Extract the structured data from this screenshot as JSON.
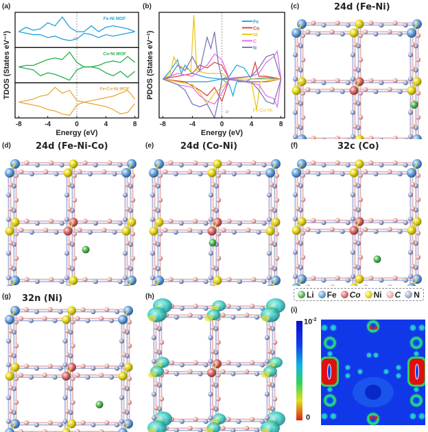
{
  "panel_labels": {
    "a": "(a)",
    "b": "(b)",
    "c": "(c)",
    "d": "(d)",
    "e": "(e)",
    "f": "(f)",
    "g": "(g)",
    "h": "(h)",
    "i": "(i)"
  },
  "titles": {
    "c": "24d (Fe-Ni)",
    "d": "24d (Fe-Ni-Co)",
    "e": "24d (Co-Ni)",
    "f": "32c (Co)",
    "g": "32n (Ni)"
  },
  "legend": [
    {
      "label": "Li",
      "color": "#5cb85c"
    },
    {
      "label": "Fe",
      "color": "#6fa8dc"
    },
    {
      "label": "Co",
      "color": "#d97070"
    },
    {
      "label": "Ni",
      "color": "#e6d81c"
    },
    {
      "label": "C",
      "color": "#e8b4b4"
    },
    {
      "label": "N",
      "color": "#9aa4c8"
    }
  ],
  "colorbar": {
    "max_base": "10",
    "max_exp": "-2",
    "min_label": "0"
  },
  "chart_data": [
    {
      "type": "line",
      "title": "",
      "xlabel": "Energy (eV)",
      "ylabel": "TDOS (States eV⁻¹)",
      "xlim": [
        -8.5,
        8.5
      ],
      "xticks": [
        -8,
        -4,
        0,
        4,
        8
      ],
      "fermi_label": "Ef",
      "x": [
        -8,
        -7,
        -6,
        -5,
        -4,
        -3,
        -2,
        -1,
        0,
        1,
        2,
        3,
        4,
        5,
        6,
        7,
        8
      ],
      "subpanels": [
        {
          "name": "Fe-Ni MOF",
          "color": "#1e9ee0",
          "up": [
            0,
            0.3,
            0.1,
            0.2,
            0.6,
            0.4,
            1.0,
            0.3,
            0,
            0,
            0.4,
            0,
            0.3,
            0.4,
            0.3,
            0.2,
            0
          ],
          "down": [
            0,
            -0.1,
            -0.2,
            -0.2,
            -0.4,
            -0.3,
            -0.5,
            -0.6,
            -0.5,
            -0.1,
            -0.2,
            -0.4,
            -0.2,
            -0.3,
            -0.2,
            -0.1,
            0
          ]
        },
        {
          "name": "Co-Ni MOF",
          "color": "#22b04a",
          "up": [
            0,
            0.1,
            0.1,
            0.3,
            0.5,
            0.6,
            0.5,
            1.0,
            0.3,
            0,
            0,
            0.1,
            0.3,
            0.4,
            0.3,
            0.7,
            0.3
          ],
          "down": [
            0,
            -0.1,
            -0.2,
            -0.6,
            -0.4,
            -0.5,
            -0.7,
            -0.9,
            -0.2,
            0,
            0,
            -0.1,
            -0.4,
            -0.6,
            -0.3,
            -0.7,
            -0.3
          ]
        },
        {
          "name": "Fe-Co-Ni MOF",
          "color": "#e8a93a",
          "up": [
            0,
            0.1,
            0.2,
            0.4,
            0.5,
            1.0,
            0.6,
            0.8,
            0.1,
            0,
            0.1,
            0.2,
            0.3,
            0.4,
            0.6,
            0.8,
            0.2
          ],
          "down": [
            0,
            -0.1,
            -0.2,
            -0.3,
            -0.5,
            -0.6,
            -0.8,
            -0.9,
            -0.2,
            0,
            -0.1,
            -0.2,
            -0.3,
            -0.5,
            -0.8,
            -0.7,
            -0.1
          ]
        }
      ]
    },
    {
      "type": "line",
      "title": "",
      "xlabel": "Energy (eV)",
      "ylabel": "PDOS (States eV⁻¹)",
      "xlim": [
        -8.5,
        8.5
      ],
      "ylim": [
        -1.4,
        2.4
      ],
      "xticks": [
        -8,
        -4,
        0,
        4,
        8
      ],
      "fermi_label": "Ef",
      "annotation": "Fe-Co-Ni",
      "series": [
        {
          "name": "Fe",
          "color": "#2aa6e0",
          "up": [
            [
              -8,
              0
            ],
            [
              -7,
              0.3
            ],
            [
              -6,
              0.7
            ],
            [
              -5.5,
              0.2
            ],
            [
              -5,
              0.5
            ],
            [
              -4,
              0.2
            ],
            [
              -2,
              0.05
            ],
            [
              0,
              0
            ],
            [
              1,
              0.1
            ],
            [
              2,
              0.5
            ],
            [
              3,
              0.4
            ],
            [
              4,
              0
            ],
            [
              6,
              0.05
            ],
            [
              8,
              0
            ]
          ],
          "down": [
            [
              -8,
              0
            ],
            [
              -6,
              -0.1
            ],
            [
              -4,
              -0.1
            ],
            [
              -2,
              -0.1
            ],
            [
              0,
              0
            ],
            [
              1,
              -0.2
            ],
            [
              1.5,
              -0.6
            ],
            [
              2,
              -0.1
            ],
            [
              3,
              -0.1
            ],
            [
              4,
              0
            ],
            [
              8,
              0
            ]
          ]
        },
        {
          "name": "Co",
          "color": "#e0463c",
          "up": [
            [
              -8,
              0
            ],
            [
              -6,
              0.1
            ],
            [
              -4,
              0.2
            ],
            [
              -3,
              0.5
            ],
            [
              -2,
              0.4
            ],
            [
              -1,
              0.6
            ],
            [
              0,
              0.5
            ],
            [
              1,
              0
            ],
            [
              4,
              0.1
            ],
            [
              4.5,
              0.6
            ],
            [
              5,
              0.1
            ],
            [
              6,
              0.1
            ],
            [
              8,
              0
            ]
          ],
          "down": [
            [
              -8,
              0
            ],
            [
              -5,
              -0.1
            ],
            [
              -3,
              -0.4
            ],
            [
              -2,
              -0.6
            ],
            [
              -1,
              -0.3
            ],
            [
              0,
              -0.8
            ],
            [
              1,
              0
            ],
            [
              4,
              -0.1
            ],
            [
              6,
              -0.1
            ],
            [
              8,
              0
            ]
          ]
        },
        {
          "name": "Ni",
          "color": "#e8c81c",
          "up": [
            [
              -8,
              0
            ],
            [
              -7,
              0.2
            ],
            [
              -6.5,
              0.8
            ],
            [
              -6,
              0.5
            ],
            [
              -4.2,
              0.3
            ],
            [
              -3.8,
              2.3
            ],
            [
              -3.4,
              0.3
            ],
            [
              -2,
              0.2
            ],
            [
              0,
              0.2
            ],
            [
              1,
              0
            ],
            [
              8,
              0
            ]
          ],
          "down": [
            [
              -8,
              0
            ],
            [
              -6,
              -0.1
            ],
            [
              -4,
              -0.2
            ],
            [
              -3,
              -0.5
            ],
            [
              -2,
              -0.9
            ],
            [
              -1,
              -0.5
            ],
            [
              0,
              -0.3
            ],
            [
              1,
              0
            ],
            [
              4,
              -0.1
            ],
            [
              4.7,
              -1.1
            ],
            [
              5.2,
              -0.1
            ],
            [
              8,
              0
            ]
          ]
        },
        {
          "name": "C",
          "color": "#e070e8",
          "up": [
            [
              -8,
              0
            ],
            [
              -6,
              0.2
            ],
            [
              -4,
              0.1
            ],
            [
              -3,
              0.3
            ],
            [
              -2,
              0.5
            ],
            [
              -1,
              0.9
            ],
            [
              0,
              0.7
            ],
            [
              1,
              0
            ],
            [
              4,
              0.1
            ],
            [
              5,
              0.2
            ],
            [
              6,
              0.6
            ],
            [
              7,
              0.8
            ],
            [
              7.5,
              1.0
            ],
            [
              8,
              0
            ]
          ],
          "down": [
            [
              -8,
              0
            ],
            [
              -6,
              -0.2
            ],
            [
              -4,
              -0.3
            ],
            [
              -3,
              -0.6
            ],
            [
              -2,
              -0.8
            ],
            [
              -1,
              -0.9
            ],
            [
              0,
              -0.5
            ],
            [
              1,
              0
            ],
            [
              5,
              -0.2
            ],
            [
              6,
              -0.6
            ],
            [
              7,
              -0.7
            ],
            [
              7.5,
              -1.0
            ],
            [
              8,
              0
            ]
          ]
        },
        {
          "name": "N",
          "color": "#7a78b8",
          "up": [
            [
              -8,
              0
            ],
            [
              -7,
              0.1
            ],
            [
              -6,
              0.5
            ],
            [
              -5,
              0.3
            ],
            [
              -4,
              0.8
            ],
            [
              -3,
              0.3
            ],
            [
              -2,
              1.5
            ],
            [
              -1.5,
              1.1
            ],
            [
              -1,
              1.7
            ],
            [
              -0.5,
              0.6
            ],
            [
              0,
              0
            ],
            [
              4,
              0.1
            ],
            [
              5,
              0.4
            ],
            [
              6,
              0.8
            ],
            [
              7,
              0.9
            ],
            [
              8,
              0
            ]
          ],
          "down": [
            [
              -8,
              0
            ],
            [
              -6,
              -0.2
            ],
            [
              -5,
              -0.4
            ],
            [
              -4,
              -0.9
            ],
            [
              -3,
              -1.0
            ],
            [
              -2,
              -0.9
            ],
            [
              -1,
              -1.4
            ],
            [
              -0.5,
              -0.8
            ],
            [
              0,
              0
            ],
            [
              4,
              -0.1
            ],
            [
              5,
              -0.4
            ],
            [
              6,
              -0.8
            ],
            [
              7,
              -0.9
            ],
            [
              8,
              0
            ]
          ]
        }
      ]
    }
  ]
}
